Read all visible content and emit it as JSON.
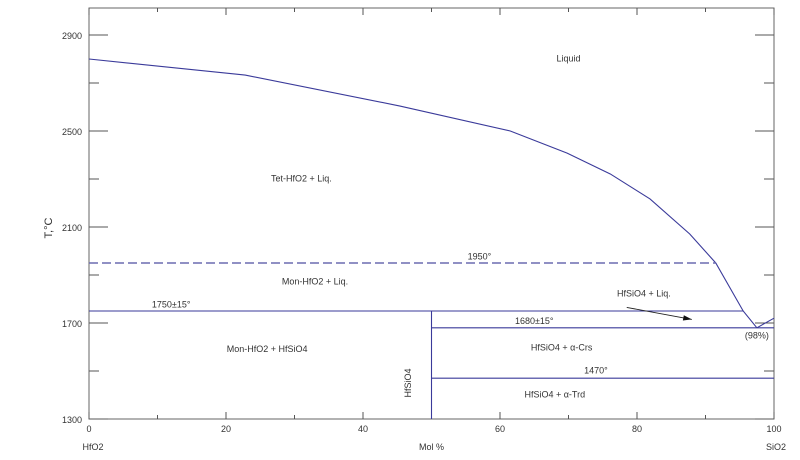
{
  "chart_data": {
    "type": "line",
    "title": "",
    "xlabel": "Mol %",
    "ylabel": "T,°C",
    "x_end_labels": {
      "left": "HfO2",
      "right": "SiO2"
    },
    "xlim": [
      0,
      100
    ],
    "ylim": [
      1300,
      2900
    ],
    "x_ticks": [
      0,
      20,
      40,
      60,
      80,
      100
    ],
    "x_minor_ticks": [
      10,
      30,
      50,
      70,
      90
    ],
    "y_ticks": [
      1300,
      1700,
      2100,
      2500,
      2900
    ],
    "y_minor_ticks": [
      1500,
      1900,
      2300,
      2700
    ],
    "grid": false,
    "line_color": "#3a3a9a",
    "series": [
      {
        "kind": "liquidus",
        "style": "solid",
        "x": [
          0,
          22.8,
          45.4,
          61.5,
          69.8,
          76.1,
          81.9,
          87.7,
          91.5,
          95.5,
          97.5
        ],
        "y": [
          2800,
          2733,
          2604,
          2500,
          2408,
          2321,
          2217,
          2071,
          1950,
          1750,
          1680
        ]
      },
      {
        "kind": "liquidus-sio2",
        "style": "solid",
        "x": [
          97.5,
          100
        ],
        "y": [
          1680,
          1720
        ]
      },
      {
        "kind": "isotherm",
        "style": "dashed",
        "x": [
          0,
          91.5
        ],
        "y": [
          1950,
          1950
        ]
      },
      {
        "kind": "isotherm",
        "style": "solid",
        "x": [
          0,
          95.5
        ],
        "y": [
          1750,
          1750
        ]
      },
      {
        "kind": "isotherm",
        "style": "solid",
        "x": [
          50,
          100
        ],
        "y": [
          1680,
          1680
        ]
      },
      {
        "kind": "isotherm",
        "style": "solid",
        "x": [
          50,
          100
        ],
        "y": [
          1470,
          1470
        ]
      },
      {
        "kind": "compound",
        "style": "solid",
        "x": [
          50,
          50
        ],
        "y": [
          1300,
          1750
        ]
      }
    ],
    "annotations": [
      {
        "text": "Liquid",
        "x": 70,
        "y": 2790
      },
      {
        "text": "Tet-HfO2 + Liq.",
        "x": 31,
        "y": 2290
      },
      {
        "text": "1950°",
        "x": 57,
        "y": 1965
      },
      {
        "text": "Mon-HfO2 + Liq.",
        "x": 33,
        "y": 1860
      },
      {
        "text": "1750±15°",
        "x": 12,
        "y": 1765
      },
      {
        "text": "HfSiO4 + Liq.",
        "x": 81,
        "y": 1810
      },
      {
        "text": "1680±15°",
        "x": 65,
        "y": 1695
      },
      {
        "text": "(98%)",
        "x": 97.5,
        "y": 1635
      },
      {
        "text": "Mon-HfO2 + HfSiO4",
        "x": 26,
        "y": 1580
      },
      {
        "text": "HfSiO4 + α-Crs",
        "x": 69,
        "y": 1585
      },
      {
        "text": "1470°",
        "x": 74,
        "y": 1490
      },
      {
        "text": "HfSiO4 + α-Trd",
        "x": 68,
        "y": 1390
      },
      {
        "text": "HfSiO4",
        "x": 47,
        "y": 1450,
        "rotated": true
      }
    ],
    "arrow": {
      "from": [
        78.5,
        1765
      ],
      "to": [
        88,
        1715
      ]
    }
  }
}
